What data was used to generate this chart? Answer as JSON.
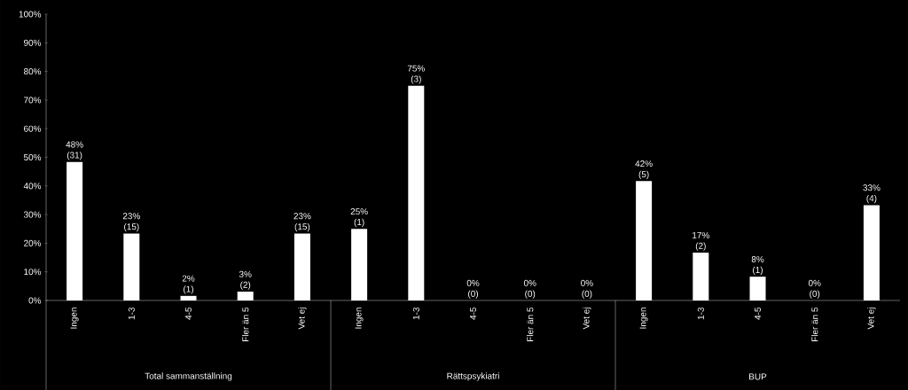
{
  "chart_data": {
    "type": "bar",
    "categories": [
      "Ingen",
      "1-3",
      "4-5",
      "Fler än 5",
      "Vet ej",
      "Ingen",
      "1-3",
      "4-5",
      "Fler än 5",
      "Vet ej",
      "Ingen",
      "1-3",
      "4-5",
      "Fler än 5",
      "Vet ej"
    ],
    "values": [
      48.4,
      23.4,
      1.6,
      3.1,
      23.4,
      25,
      75,
      0,
      0,
      0,
      41.7,
      16.7,
      8.3,
      0,
      33.3
    ],
    "value_labels": [
      "48% (31)",
      "23% (15)",
      "2% (1)",
      "3% (2)",
      "23% (15)",
      "25% (1)",
      "75% (3)",
      "0% (0)",
      "0% (0)",
      "0% (0)",
      "42% (5)",
      "17% (2)",
      "8% (1)",
      "0% (0)",
      "33% (4)"
    ],
    "color": "#ffffff",
    "ylim": [
      0,
      100
    ],
    "yticks": [
      {
        "value": 0,
        "label": "0%"
      },
      {
        "value": 10,
        "label": "10%"
      },
      {
        "value": 20,
        "label": "20%"
      },
      {
        "value": 30,
        "label": "30%"
      },
      {
        "value": 40,
        "label": "40%"
      },
      {
        "value": 50,
        "label": "50%"
      },
      {
        "value": 60,
        "label": "60%"
      },
      {
        "value": 70,
        "label": "70%"
      },
      {
        "value": 80,
        "label": "80%"
      },
      {
        "value": 90,
        "label": "90%"
      },
      {
        "value": 100,
        "label": "100%"
      }
    ],
    "grid": false,
    "annotations": [
      "Total sammanställning",
      "Rättspsykiatri",
      "BUP"
    ]
  }
}
